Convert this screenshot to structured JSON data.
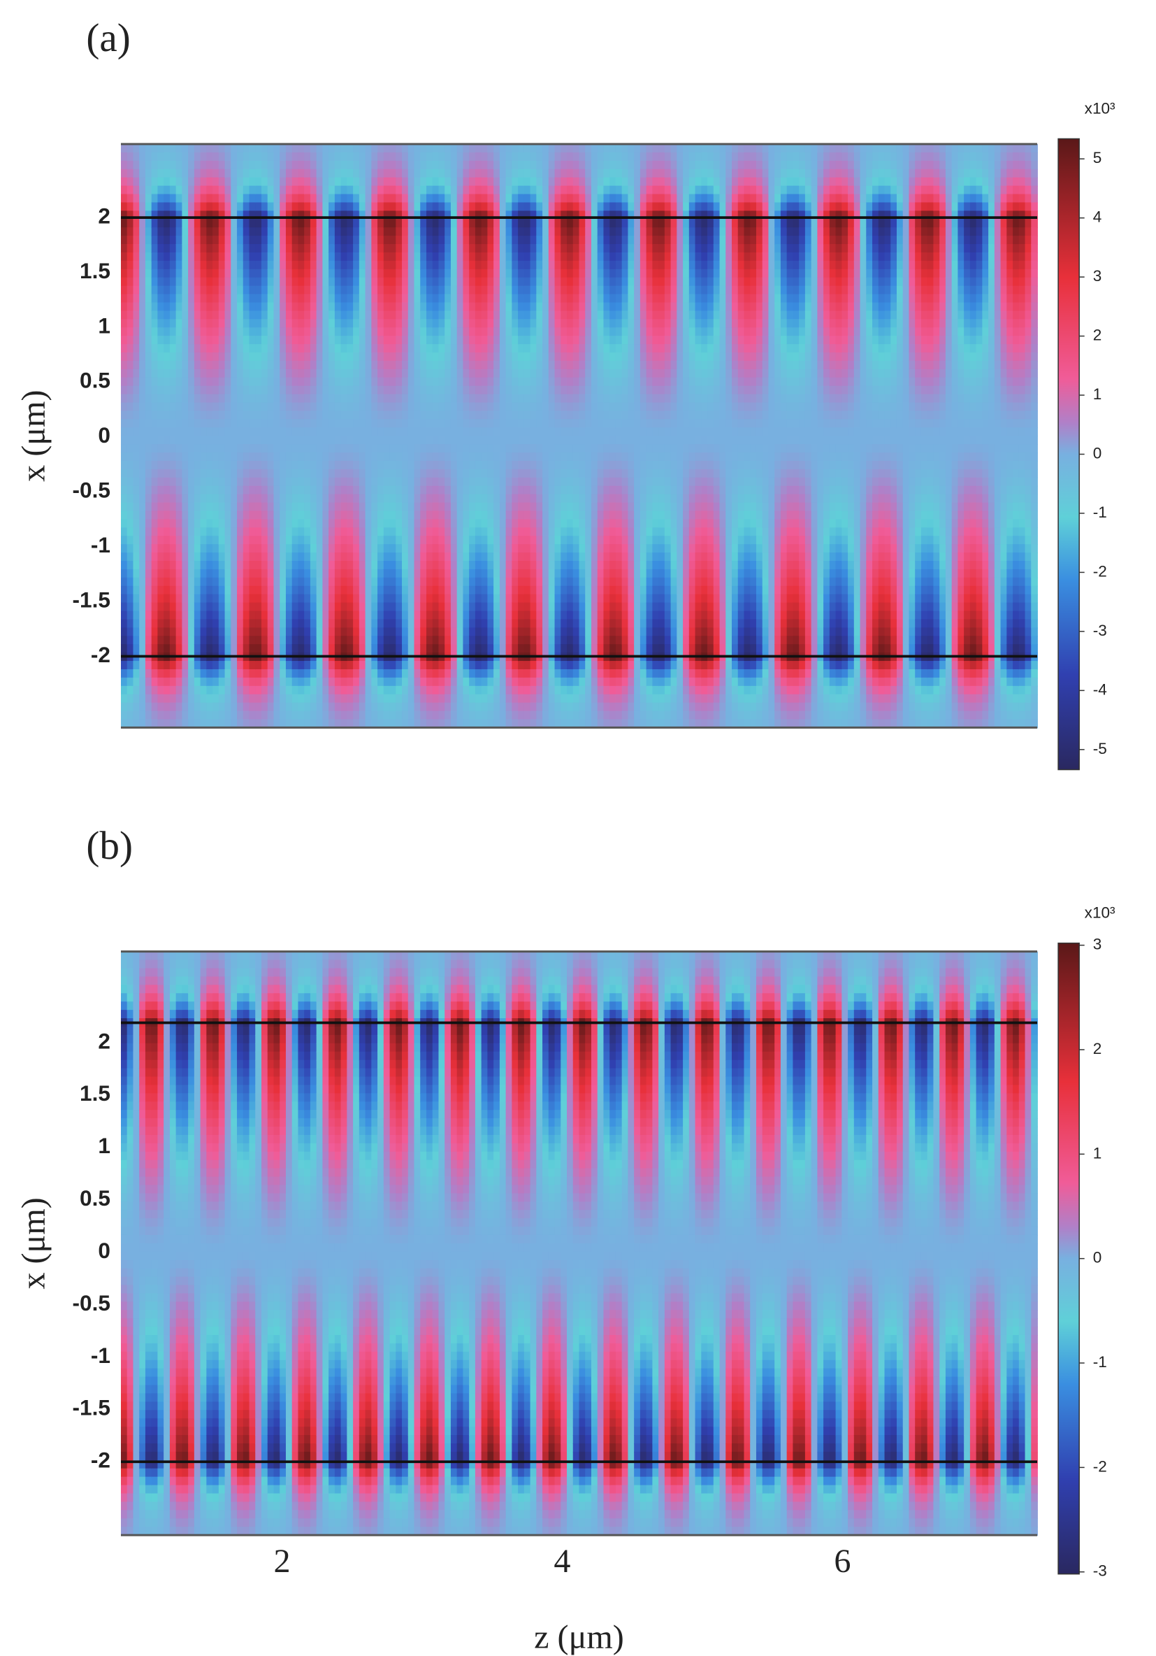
{
  "chart_data": [
    {
      "type": "heatmap",
      "panel_label": "(a)",
      "ylabel": "x (μm)",
      "xlim": [
        0.85,
        7.39
      ],
      "ylim": [
        -2.65,
        2.67
      ],
      "yticks": [
        -2,
        -1.5,
        -1,
        -0.5,
        0,
        0.5,
        1,
        1.5,
        2
      ],
      "boundaries": [
        2,
        -2
      ],
      "colorbar": {
        "label": "x10³",
        "lim": [
          -5.34,
          5.34
        ],
        "ticks": [
          -5,
          -4,
          -3,
          -2,
          -1,
          0,
          1,
          2,
          3,
          4,
          5
        ]
      }
    },
    {
      "type": "heatmap",
      "panel_label": "(b)",
      "ylabel": "x (μm)",
      "xlabel": "z (μm)",
      "xlim": [
        0.85,
        7.39
      ],
      "ylim": [
        -2.7,
        2.87
      ],
      "xticks": [
        2,
        4,
        6
      ],
      "yticks": [
        -2,
        -1.5,
        -1,
        -0.5,
        0,
        0.5,
        1,
        1.5,
        2
      ],
      "boundaries": [
        2.19,
        -2
      ],
      "colorbar": {
        "label": "x10³",
        "lim": [
          -3.02,
          3.02
        ],
        "ticks": [
          -3,
          -2,
          -1,
          0,
          1,
          2,
          3
        ]
      }
    }
  ]
}
